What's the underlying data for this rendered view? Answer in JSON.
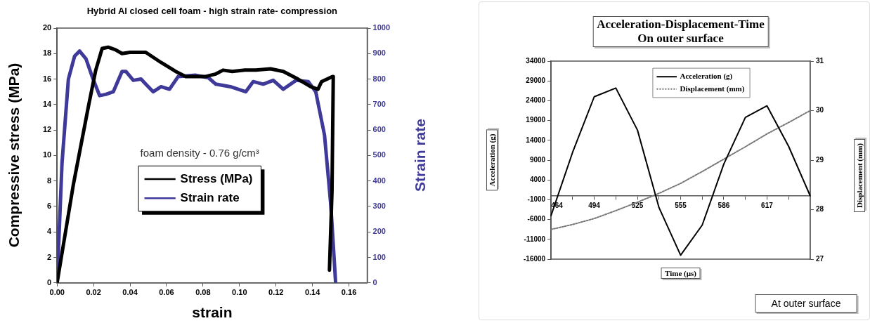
{
  "chart_data": [
    {
      "type": "line",
      "title": "Hybrid Al closed cell foam - high strain rate- compression",
      "xlabel": "strain",
      "ylabel": "Compressive stress (MPa)",
      "y2label": "Strain rate",
      "annotations": [
        "foam density - 0.76 g/cm³"
      ],
      "xlim": [
        0,
        0.17
      ],
      "xticks": [
        {
          "value": 0,
          "label": "0.00"
        },
        {
          "value": 0.02,
          "label": "0.02"
        },
        {
          "value": 0.04,
          "label": "0.04"
        },
        {
          "value": 0.06,
          "label": "0.06"
        },
        {
          "value": 0.08,
          "label": "0.08"
        },
        {
          "value": 0.1,
          "label": "0.10"
        },
        {
          "value": 0.12,
          "label": "0.12"
        },
        {
          "value": 0.14,
          "label": "0.14"
        },
        {
          "value": 0.16,
          "label": "0.16"
        }
      ],
      "ylim": [
        0,
        20
      ],
      "yticks": [
        0,
        2,
        4,
        6,
        8,
        10,
        12,
        14,
        16,
        18,
        20
      ],
      "y2lim": [
        0,
        1000
      ],
      "y2ticks": [
        0,
        100,
        200,
        300,
        400,
        500,
        600,
        700,
        800,
        900,
        1000
      ],
      "legend": "center",
      "grid": false,
      "series": [
        {
          "name": "Stress (MPa)",
          "color": "#000000",
          "x": [
            0,
            0.0089,
            0.0171,
            0.0212,
            0.0247,
            0.028,
            0.032,
            0.0356,
            0.04,
            0.0486,
            0.057,
            0.065,
            0.0705,
            0.0815,
            0.087,
            0.091,
            0.096,
            0.103,
            0.109,
            0.117,
            0.124,
            0.132,
            0.139,
            0.143,
            0.145,
            0.151,
            0.1514,
            0.1507,
            0.1493
          ],
          "values": [
            0,
            7.7,
            13.8,
            16.7,
            18.4,
            18.5,
            18.3,
            18.0,
            18.1,
            18.1,
            17.3,
            16.6,
            16.2,
            16.2,
            16.4,
            16.7,
            16.6,
            16.7,
            16.7,
            16.8,
            16.6,
            16.0,
            15.4,
            15.2,
            15.8,
            16.2,
            16.2,
            7.2,
            1.0
          ]
        },
        {
          "name": "Strain rate",
          "color": "#3f3a9a",
          "axis": "y2",
          "x": [
            0,
            0.0027,
            0.0062,
            0.0096,
            0.0123,
            0.0158,
            0.0192,
            0.0233,
            0.0267,
            0.0308,
            0.0356,
            0.0377,
            0.0418,
            0.046,
            0.0486,
            0.0527,
            0.057,
            0.0616,
            0.0664,
            0.076,
            0.083,
            0.087,
            0.095,
            0.1034,
            0.1075,
            0.113,
            0.1185,
            0.124,
            0.131,
            0.1377,
            0.1418,
            0.1466,
            0.15,
            0.1527
          ],
          "values": [
            0,
            470,
            800,
            890,
            910,
            880,
            810,
            735,
            740,
            750,
            830,
            830,
            795,
            800,
            780,
            750,
            770,
            760,
            810,
            815,
            805,
            780,
            770,
            750,
            790,
            780,
            795,
            760,
            795,
            790,
            750,
            580,
            310,
            0
          ]
        }
      ]
    },
    {
      "type": "line",
      "title": "Acceleration-Displacement-Time",
      "subtitle": "On outer surface",
      "xlabel": "Time (µs)",
      "ylabel": "Acceleration (g)",
      "y2label": "Displacement (mm)",
      "annotations": [
        "At outer  surface"
      ],
      "categories": [
        "464",
        null,
        "494",
        null,
        "525",
        null,
        "555",
        null,
        "586",
        null,
        "617",
        null,
        null
      ],
      "ylim": [
        -16000,
        34000
      ],
      "yticks": [
        -16000,
        -11000,
        -6000,
        -1000,
        4000,
        9000,
        14000,
        19000,
        24000,
        29000,
        34000
      ],
      "y2lim": [
        27,
        31
      ],
      "y2ticks": [
        27,
        28,
        29,
        30,
        31
      ],
      "legend": "top right",
      "grid": false,
      "series": [
        {
          "name": "Acceleration (g)",
          "color": "#000000",
          "values": [
            -5000,
            11000,
            25000,
            27200,
            16600,
            -3000,
            -15000,
            -7400,
            8000,
            19800,
            22700,
            12500,
            0
          ]
        },
        {
          "name": "Displacement (mm)",
          "color": "#777777",
          "axis": "y2",
          "line_style": "dotted",
          "values": [
            27.6,
            27.7,
            27.82,
            27.98,
            28.15,
            28.33,
            28.53,
            28.77,
            29.02,
            29.27,
            29.53,
            29.76,
            30.0
          ]
        }
      ]
    }
  ]
}
